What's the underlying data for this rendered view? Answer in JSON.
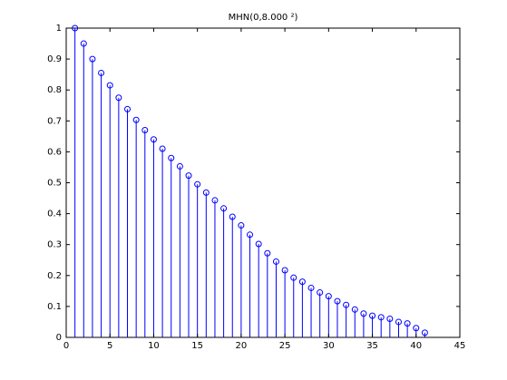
{
  "chart_data": {
    "type": "stem",
    "title": "MHN(0,8.000 ²)",
    "xlabel": "",
    "ylabel": "",
    "xlim": [
      0,
      45
    ],
    "ylim": [
      0,
      1
    ],
    "xticks": [
      "0",
      "5",
      "10",
      "15",
      "20",
      "25",
      "30",
      "35",
      "40",
      "45"
    ],
    "yticks": [
      "0",
      "0.1",
      "0.2",
      "0.3",
      "0.4",
      "0.5",
      "0.6",
      "0.7",
      "0.8",
      "0.9",
      "1"
    ],
    "grid": false,
    "colors": {
      "series": "#0000ff",
      "axes": "#000000"
    },
    "x": [
      1,
      2,
      3,
      4,
      5,
      6,
      7,
      8,
      9,
      10,
      11,
      12,
      13,
      14,
      15,
      16,
      17,
      18,
      19,
      20,
      21,
      22,
      23,
      24,
      25,
      26,
      27,
      28,
      29,
      30,
      31,
      32,
      33,
      34,
      35,
      36,
      37,
      38,
      39,
      40,
      41
    ],
    "values": [
      1.0,
      0.95,
      0.9,
      0.855,
      0.815,
      0.775,
      0.738,
      0.703,
      0.67,
      0.64,
      0.61,
      0.58,
      0.553,
      0.523,
      0.495,
      0.468,
      0.443,
      0.417,
      0.39,
      0.362,
      0.332,
      0.302,
      0.272,
      0.245,
      0.217,
      0.193,
      0.18,
      0.16,
      0.145,
      0.133,
      0.117,
      0.105,
      0.09,
      0.077,
      0.07,
      0.065,
      0.06,
      0.05,
      0.045,
      0.03,
      0.015
    ]
  }
}
